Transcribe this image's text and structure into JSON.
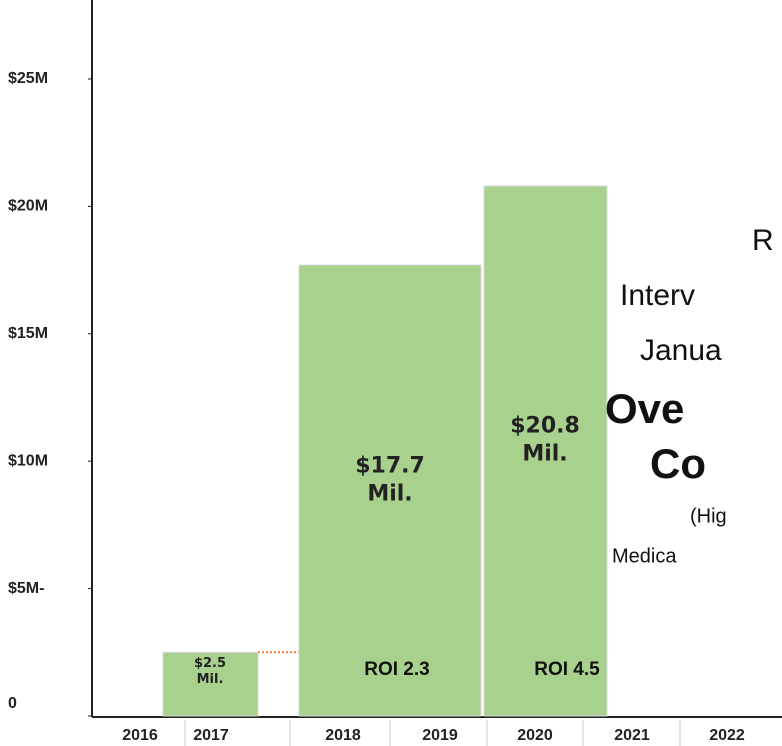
{
  "chart_data": {
    "type": "bar",
    "categories": [
      "2016",
      "2017",
      "2018",
      "2019",
      "2020",
      "2021",
      "2022"
    ],
    "values": [
      null,
      2500000,
      17700000,
      null,
      20800000,
      null,
      null
    ],
    "value_labels": [
      null,
      "$2.5 Mil.",
      "$17.7 Mil.",
      null,
      "$20.8 Mil.",
      null,
      null
    ],
    "color": "#a9d18e",
    "ylim": [
      0,
      28000000
    ],
    "yticks": [
      {
        "value": 0,
        "label": "0"
      },
      {
        "value": 5000000,
        "label": "$5M-"
      },
      {
        "value": 10000000,
        "label": "$10M"
      },
      {
        "value": 15000000,
        "label": "$15M"
      },
      {
        "value": 20000000,
        "label": "$20M"
      },
      {
        "value": 25000000,
        "label": "$25M"
      }
    ],
    "annotations": [
      "ROI 2.3",
      "ROI 4.5"
    ],
    "side_text": [
      "R",
      "Interv",
      "Janua",
      "Ove",
      "Co",
      "(Hig",
      "Medica"
    ]
  }
}
